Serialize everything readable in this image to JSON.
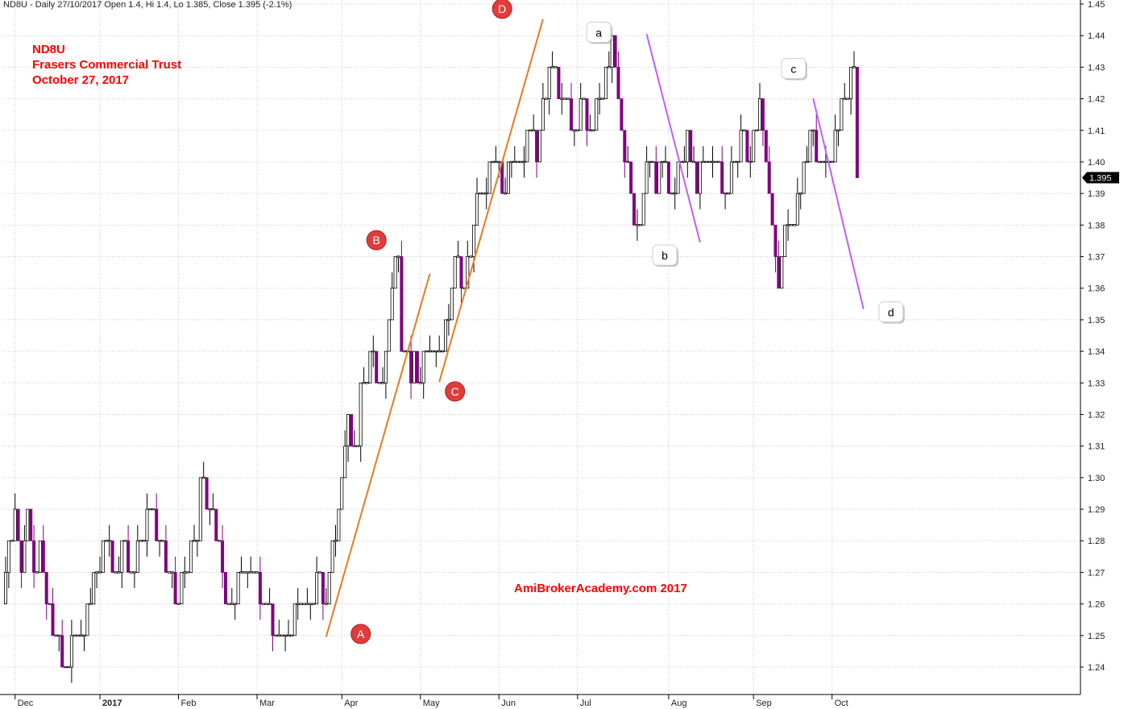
{
  "header": {
    "info": "ND8U - Daily 27/10/2017 Open 1.4, Hi 1.4, Lo 1.385, Close 1.395 (-2.1%)"
  },
  "title_block": {
    "line1": "ND8U",
    "line2": "Frasers Commercial Trust",
    "line3": "October 27, 2017"
  },
  "watermark": "AmiBrokerAcademy.com  2017",
  "colors": {
    "up_candle": "#ffffff",
    "down_candle": "#800080",
    "candle_outline": "#000000",
    "trend_line_orange": "#e87a1f",
    "trend_line_purple": "#bf5fff",
    "label_red": "#ff0000",
    "marker_red": "#e23b3b",
    "grid": "#c8c8c8"
  },
  "chart_data": {
    "type": "candlestick",
    "symbol": "ND8U",
    "ylim": [
      1.23,
      1.45
    ],
    "y_ticks": [
      "1.24",
      "1.25",
      "1.26",
      "1.27",
      "1.28",
      "1.29",
      "1.30",
      "1.31",
      "1.32",
      "1.33",
      "1.34",
      "1.35",
      "1.36",
      "1.37",
      "1.38",
      "1.39",
      "1.40",
      "1.41",
      "1.42",
      "1.43",
      "1.44",
      "1.45"
    ],
    "last_price": "1.395",
    "months": [
      {
        "label": "Dec",
        "bar": 3
      },
      {
        "label": "2017",
        "bar": 30
      },
      {
        "label": "Feb",
        "bar": 55
      },
      {
        "label": "Mar",
        "bar": 80
      },
      {
        "label": "Apr",
        "bar": 107
      },
      {
        "label": "May",
        "bar": 132
      },
      {
        "label": "Jun",
        "bar": 157
      },
      {
        "label": "Jul",
        "bar": 182
      },
      {
        "label": "Aug",
        "bar": 211
      },
      {
        "label": "Sep",
        "bar": 238
      },
      {
        "label": "Oct",
        "bar": 263
      }
    ],
    "closes": [
      1.27,
      1.28,
      1.28,
      1.29,
      1.28,
      1.27,
      1.28,
      1.29,
      1.28,
      1.27,
      1.27,
      1.28,
      1.27,
      1.26,
      1.26,
      1.25,
      1.25,
      1.25,
      1.24,
      1.24,
      1.24,
      1.25,
      1.25,
      1.25,
      1.25,
      1.25,
      1.26,
      1.26,
      1.27,
      1.27,
      1.27,
      1.28,
      1.28,
      1.28,
      1.27,
      1.27,
      1.27,
      1.28,
      1.28,
      1.27,
      1.27,
      1.27,
      1.28,
      1.28,
      1.28,
      1.29,
      1.29,
      1.29,
      1.28,
      1.28,
      1.28,
      1.27,
      1.27,
      1.27,
      1.26,
      1.26,
      1.27,
      1.27,
      1.27,
      1.28,
      1.28,
      1.28,
      1.3,
      1.3,
      1.29,
      1.29,
      1.29,
      1.28,
      1.28,
      1.27,
      1.26,
      1.26,
      1.26,
      1.26,
      1.27,
      1.27,
      1.27,
      1.27,
      1.27,
      1.27,
      1.27,
      1.26,
      1.26,
      1.26,
      1.26,
      1.25,
      1.25,
      1.25,
      1.25,
      1.25,
      1.25,
      1.25,
      1.26,
      1.26,
      1.26,
      1.26,
      1.26,
      1.26,
      1.26,
      1.27,
      1.27,
      1.26,
      1.26,
      1.27,
      1.28,
      1.28,
      1.29,
      1.3,
      1.31,
      1.32,
      1.31,
      1.31,
      1.31,
      1.33,
      1.33,
      1.33,
      1.34,
      1.34,
      1.33,
      1.33,
      1.33,
      1.34,
      1.35,
      1.36,
      1.37,
      1.37,
      1.34,
      1.34,
      1.34,
      1.33,
      1.34,
      1.33,
      1.33,
      1.34,
      1.34,
      1.34,
      1.34,
      1.34,
      1.34,
      1.34,
      1.35,
      1.35,
      1.36,
      1.37,
      1.37,
      1.36,
      1.36,
      1.37,
      1.37,
      1.38,
      1.39,
      1.39,
      1.39,
      1.39,
      1.4,
      1.4,
      1.4,
      1.4,
      1.39,
      1.39,
      1.4,
      1.4,
      1.4,
      1.4,
      1.4,
      1.4,
      1.41,
      1.41,
      1.41,
      1.4,
      1.41,
      1.42,
      1.42,
      1.43,
      1.43,
      1.43,
      1.42,
      1.42,
      1.42,
      1.42,
      1.41,
      1.41,
      1.41,
      1.42,
      1.42,
      1.41,
      1.41,
      1.41,
      1.42,
      1.42,
      1.42,
      1.43,
      1.43,
      1.44,
      1.43,
      1.42,
      1.41,
      1.4,
      1.4,
      1.39,
      1.38,
      1.38,
      1.38,
      1.39,
      1.4,
      1.4,
      1.4,
      1.39,
      1.4,
      1.4,
      1.4,
      1.39,
      1.39,
      1.39,
      1.4,
      1.4,
      1.4,
      1.41,
      1.4,
      1.4,
      1.39,
      1.4,
      1.4,
      1.4,
      1.4,
      1.4,
      1.4,
      1.4,
      1.39,
      1.39,
      1.39,
      1.4,
      1.4,
      1.4,
      1.41,
      1.41,
      1.4,
      1.4,
      1.41,
      1.41,
      1.42,
      1.41,
      1.4,
      1.39,
      1.38,
      1.37,
      1.36,
      1.37,
      1.38,
      1.38,
      1.38,
      1.38,
      1.39,
      1.39,
      1.4,
      1.4,
      1.41,
      1.41,
      1.4,
      1.4,
      1.4,
      1.4,
      1.4,
      1.4,
      1.41,
      1.41,
      1.42,
      1.42,
      1.42,
      1.43,
      1.43,
      1.395
    ]
  },
  "annotations": {
    "orange_labels": [
      {
        "text": "A",
        "bar": 113,
        "price": 1.2505
      },
      {
        "text": "B",
        "bar": 118,
        "price": 1.3752
      },
      {
        "text": "C",
        "bar": 143,
        "price": 1.3273
      },
      {
        "text": "D",
        "bar": 158,
        "price": 1.4485
      }
    ],
    "purple_labels": [
      {
        "text": "a",
        "bar": 189,
        "price": 1.4407
      },
      {
        "text": "b",
        "bar": 210,
        "price": 1.3701
      },
      {
        "text": "c",
        "bar": 251,
        "price": 1.4292
      },
      {
        "text": "d",
        "bar": 282,
        "price": 1.3521
      }
    ],
    "trend_lines": [
      {
        "color": "orange",
        "from": {
          "bar": 102,
          "price": 1.2496
        },
        "to": {
          "bar": 135,
          "price": 1.3646
        }
      },
      {
        "color": "orange",
        "from": {
          "bar": 138,
          "price": 1.3303
        },
        "to": {
          "bar": 171,
          "price": 1.4452
        }
      },
      {
        "color": "purple",
        "from": {
          "bar": 204,
          "price": 1.4405
        },
        "to": {
          "bar": 221,
          "price": 1.3745
        }
      },
      {
        "color": "purple",
        "from": {
          "bar": 257,
          "price": 1.4201
        },
        "to": {
          "bar": 273,
          "price": 1.3534
        }
      }
    ]
  }
}
